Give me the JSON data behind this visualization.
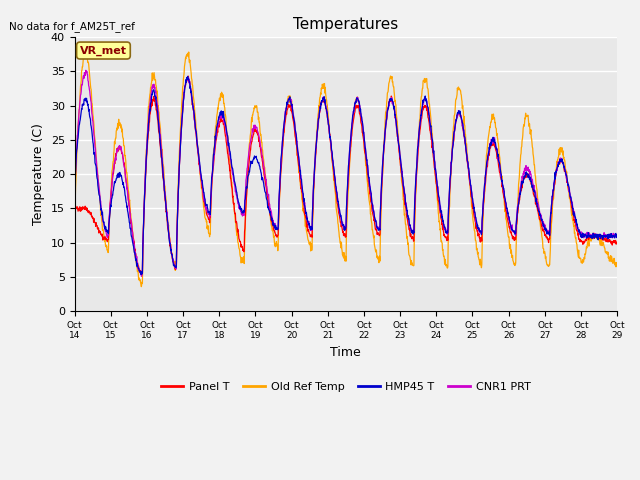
{
  "title": "Temperatures",
  "xlabel": "Time",
  "ylabel": "Temperature (C)",
  "ylim": [
    0,
    40
  ],
  "yticks": [
    0,
    5,
    10,
    15,
    20,
    25,
    30,
    35,
    40
  ],
  "xtick_labels": [
    "Oct 14",
    "Oct 15",
    "Oct 16",
    "Oct 17",
    "Oct 18",
    "Oct 19",
    "Oct 20",
    "Oct 21",
    "Oct 22",
    "Oct 23",
    "Oct 24",
    "Oct 25",
    "Oct 26",
    "Oct 27",
    "Oct 28",
    "Oct 29"
  ],
  "no_data_text": "No data for f_AM25T_ref",
  "annotation_text": "VR_met",
  "line_colors": {
    "panel_t": "#FF0000",
    "old_ref": "#FFA500",
    "hmp45": "#0000CC",
    "cnr1": "#CC00CC"
  },
  "legend_labels": [
    "Panel T",
    "Old Ref Temp",
    "HMP45 T",
    "CNR1 PRT"
  ],
  "background_color": "#E8E8E8",
  "title_fontsize": 11,
  "axis_fontsize": 9,
  "legend_fontsize": 8,
  "orange_peaks": [
    38.0,
    27.5,
    34.5,
    37.5,
    31.5,
    30.0,
    31.0,
    33.0,
    31.0,
    34.0,
    34.0,
    32.5,
    28.5,
    28.5,
    23.5,
    11.0
  ],
  "orange_mins": [
    10.5,
    9.0,
    4.0,
    6.5,
    11.5,
    7.0,
    9.5,
    9.5,
    7.5,
    7.5,
    6.5,
    6.5,
    7.0,
    7.0,
    6.5,
    7.0
  ],
  "blue_peaks": [
    31.0,
    20.0,
    32.0,
    34.0,
    29.0,
    22.5,
    31.0,
    31.0,
    31.0,
    31.0,
    31.0,
    29.0,
    25.0,
    20.0,
    22.0,
    11.0
  ],
  "blue_mins": [
    17.5,
    11.5,
    5.5,
    6.5,
    14.5,
    14.5,
    12.0,
    12.0,
    12.0,
    12.0,
    11.5,
    11.5,
    11.5,
    11.5,
    11.5,
    11.0
  ],
  "red_peaks": [
    15.0,
    24.0,
    31.0,
    34.0,
    28.0,
    26.5,
    30.0,
    31.0,
    30.0,
    31.0,
    30.0,
    29.0,
    24.5,
    20.0,
    22.0,
    11.0
  ],
  "red_mins": [
    15.0,
    10.5,
    5.5,
    6.5,
    13.5,
    9.0,
    11.0,
    11.0,
    11.0,
    11.0,
    10.5,
    10.5,
    10.5,
    10.5,
    10.5,
    10.0
  ],
  "purple_peaks": [
    35.0,
    24.0,
    33.0,
    34.0,
    28.5,
    27.0,
    31.0,
    31.0,
    31.0,
    31.0,
    31.0,
    29.0,
    25.0,
    21.0,
    22.0,
    11.0
  ],
  "purple_mins": [
    15.5,
    11.0,
    5.5,
    6.5,
    14.0,
    14.0,
    12.0,
    12.0,
    12.0,
    12.0,
    11.5,
    11.5,
    11.5,
    11.5,
    11.5,
    11.0
  ]
}
